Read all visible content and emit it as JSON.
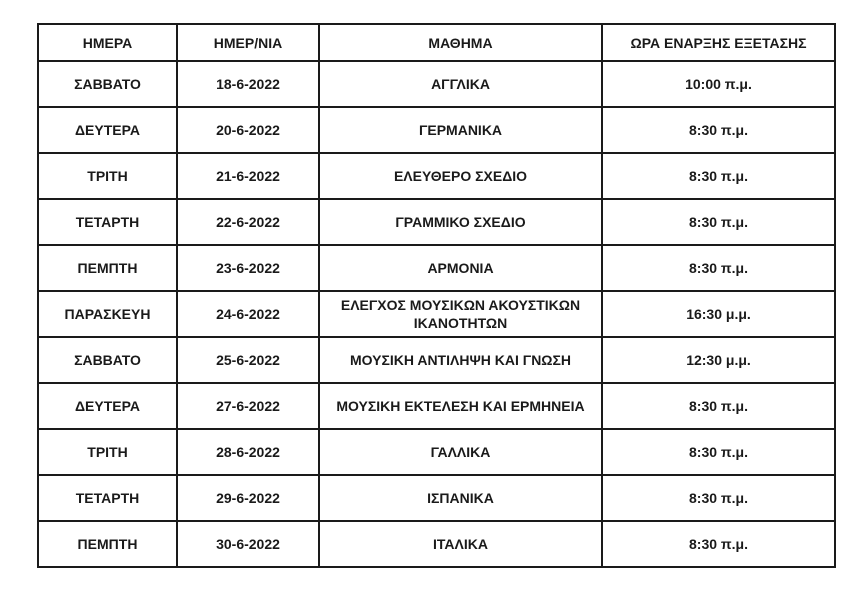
{
  "table": {
    "columns": [
      {
        "label": "ΗΜΕΡΑ"
      },
      {
        "label": "ΗΜΕΡ/ΝΙΑ"
      },
      {
        "label": "ΜΑΘΗΜΑ"
      },
      {
        "label": "ΩΡΑ ΕΝΑΡΞΗΣ ΕΞΕΤΑΣΗΣ"
      }
    ],
    "rows": [
      {
        "day": "ΣΑΒΒΑΤΟ",
        "date": "18-6-2022",
        "subject": "ΑΓΓΛΙΚΑ",
        "time": "10:00 π.μ."
      },
      {
        "day": "ΔΕΥΤΕΡΑ",
        "date": "20-6-2022",
        "subject": "ΓΕΡΜΑΝΙΚΑ",
        "time": "8:30 π.μ."
      },
      {
        "day": "ΤΡΙΤΗ",
        "date": "21-6-2022",
        "subject": "ΕΛΕΥΘΕΡΟ ΣΧΕΔΙΟ",
        "time": "8:30 π.μ."
      },
      {
        "day": "ΤΕΤΑΡΤΗ",
        "date": "22-6-2022",
        "subject": "ΓΡΑΜΜΙΚΟ ΣΧΕΔΙΟ",
        "time": "8:30 π.μ."
      },
      {
        "day": "ΠΕΜΠΤΗ",
        "date": "23-6-2022",
        "subject": "ΑΡΜΟΝΙΑ",
        "time": "8:30 π.μ."
      },
      {
        "day": "ΠΑΡΑΣΚΕΥΗ",
        "date": "24-6-2022",
        "subject": "ΕΛΕΓΧΟΣ ΜΟΥΣΙΚΩΝ ΑΚΟΥΣΤΙΚΩΝ ΙΚΑΝΟΤΗΤΩΝ",
        "time": "16:30 μ.μ."
      },
      {
        "day": "ΣΑΒΒΑΤΟ",
        "date": "25-6-2022",
        "subject": "ΜΟΥΣΙΚΗ ΑΝΤΙΛΗΨΗ ΚΑΙ ΓΝΩΣΗ",
        "time": "12:30 μ.μ."
      },
      {
        "day": "ΔΕΥΤΕΡΑ",
        "date": "27-6-2022",
        "subject": "ΜΟΥΣΙΚΗ ΕΚΤΕΛΕΣΗ ΚΑΙ ΕΡΜΗΝΕΙΑ",
        "time": "8:30 π.μ."
      },
      {
        "day": "ΤΡΙΤΗ",
        "date": "28-6-2022",
        "subject": "ΓΑΛΛΙΚΑ",
        "time": "8:30 π.μ."
      },
      {
        "day": "ΤΕΤΑΡΤΗ",
        "date": "29-6-2022",
        "subject": "ΙΣΠΑΝΙΚΑ",
        "time": "8:30 π.μ."
      },
      {
        "day": "ΠΕΜΠΤΗ",
        "date": "30-6-2022",
        "subject": "ΙΤΑΛΙΚΑ",
        "time": "8:30 π.μ."
      }
    ]
  },
  "colors": {
    "border": "#1a1a1a",
    "text": "#1a1a1a",
    "background": "#ffffff"
  }
}
